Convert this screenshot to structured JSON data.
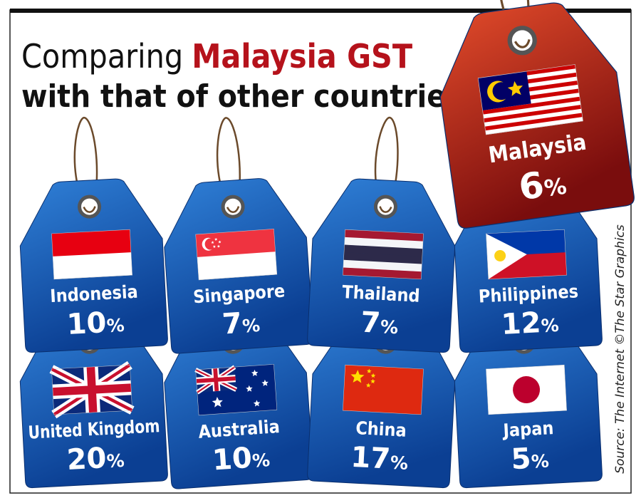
{
  "title": {
    "lead": "Comparing",
    "highlight": "Malaysia GST",
    "line2": "with that of other countries"
  },
  "featured": {
    "country": "Malaysia",
    "rate": "6",
    "unit": "%"
  },
  "tags": [
    {
      "country": "Indonesia",
      "rate": "10",
      "unit": "%"
    },
    {
      "country": "Singapore",
      "rate": "7",
      "unit": "%"
    },
    {
      "country": "Thailand",
      "rate": "7",
      "unit": "%"
    },
    {
      "country": "Philippines",
      "rate": "12",
      "unit": "%"
    },
    {
      "country": "United Kingdom",
      "rate": "20",
      "unit": "%"
    },
    {
      "country": "Australia",
      "rate": "10",
      "unit": "%"
    },
    {
      "country": "China",
      "rate": "17",
      "unit": "%"
    },
    {
      "country": "Japan",
      "rate": "5",
      "unit": "%"
    }
  ],
  "source": "Source: The Internet ©The Star Graphics"
}
